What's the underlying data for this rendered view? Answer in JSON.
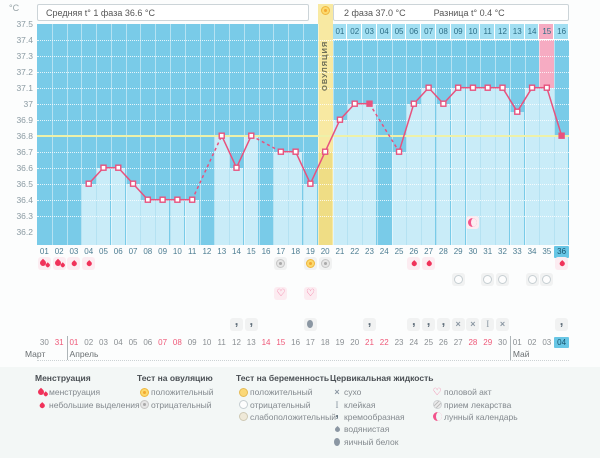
{
  "header": {
    "unit_label": "°C",
    "phase1_label": "Средняя t° 1 фаза 36.6 °C",
    "phase2_label": "2 фаза 37.0 °C",
    "diff_label": "Разница t° 0.4 °C",
    "ovulation_label": "ОВУЛЯЦИЯ"
  },
  "chart_data": {
    "type": "line",
    "ylabel": "°C",
    "ylim": [
      36.2,
      37.5
    ],
    "ytick_labels": [
      "37.5",
      "37.4",
      "37.3",
      "37.2",
      "37.1",
      "37",
      "36.9",
      "36.8",
      "36.7",
      "36.6",
      "36.5",
      "36.4",
      "36.3",
      "36.2"
    ],
    "day_labels": [
      "01",
      "02",
      "03",
      "04",
      "05",
      "06",
      "07",
      "08",
      "09",
      "10",
      "11",
      "12",
      "13",
      "14",
      "15",
      "16",
      "17",
      "18",
      "19",
      "20",
      "21",
      "22",
      "23",
      "24",
      "25",
      "26",
      "27",
      "28",
      "29",
      "30",
      "31",
      "32",
      "33",
      "34",
      "35",
      "36"
    ],
    "points": [
      [
        4,
        36.5
      ],
      [
        5,
        36.6
      ],
      [
        6,
        36.6
      ],
      [
        7,
        36.5
      ],
      [
        8,
        36.4
      ],
      [
        9,
        36.4
      ],
      [
        10,
        36.4
      ],
      [
        11,
        36.4
      ],
      [
        13,
        36.8
      ],
      [
        14,
        36.6
      ],
      [
        15,
        36.8
      ],
      [
        17,
        36.7
      ],
      [
        18,
        36.7
      ],
      [
        19,
        36.5
      ],
      [
        20,
        36.7
      ],
      [
        21,
        36.9
      ],
      [
        22,
        37
      ],
      [
        23,
        37
      ],
      [
        25,
        36.7
      ],
      [
        26,
        37
      ],
      [
        27,
        37.1
      ],
      [
        28,
        37
      ],
      [
        29,
        37.1
      ],
      [
        30,
        37.1
      ],
      [
        31,
        37.1
      ],
      [
        32,
        37.1
      ],
      [
        33,
        36.95
      ],
      [
        34,
        37.1
      ],
      [
        35,
        37.1
      ],
      [
        36,
        36.8
      ]
    ],
    "filled_marker_days": [
      23,
      36
    ],
    "coverline": 36.8,
    "ovulation_day": 20,
    "expected_period_day": 35,
    "moon_day": 30,
    "current_day_label": "36",
    "phase2_strip": {
      "labels": [
        "01",
        "02",
        "03",
        "04",
        "05",
        "06",
        "07",
        "08",
        "09",
        "10",
        "11",
        "12",
        "13",
        "14",
        "15",
        "16"
      ],
      "highlight_label": "15"
    }
  },
  "events": {
    "menstruation_heavy_days": [
      1,
      2
    ],
    "menstruation_light_days": [
      3,
      4,
      26,
      27,
      36
    ],
    "ovulation_test_positive_days": [
      19
    ],
    "ovulation_test_negative_days": [
      17,
      20
    ],
    "pregnancy_test_negative_days": [
      29,
      31,
      32,
      34,
      35
    ],
    "intercourse_days": [
      17,
      19
    ],
    "cervical_fluid": {
      "14": "creamy",
      "15": "creamy",
      "19": "eggwhite",
      "23": "creamy",
      "26": "creamy",
      "27": "creamy",
      "28": "creamy",
      "29": "dry",
      "30": "dry",
      "31": "sticky",
      "32": "dry",
      "36": "creamy"
    }
  },
  "calendar": {
    "months": [
      {
        "name": "Март",
        "dates": [
          "30",
          "31"
        ],
        "weekend_dates": [
          "31"
        ],
        "highlight_date": ""
      },
      {
        "name": "Апрель",
        "dates": [
          "01",
          "02",
          "03",
          "04",
          "05",
          "06",
          "07",
          "08",
          "09",
          "10",
          "11",
          "12",
          "13",
          "14",
          "15",
          "16",
          "17",
          "18",
          "19",
          "20",
          "21",
          "22",
          "23",
          "24",
          "25",
          "26",
          "27",
          "28",
          "29",
          "30"
        ],
        "weekend_dates": [
          "01",
          "07",
          "08",
          "14",
          "15",
          "21",
          "22",
          "28",
          "29"
        ],
        "highlight_date": ""
      },
      {
        "name": "Май",
        "dates": [
          "01",
          "02",
          "03",
          "04"
        ],
        "weekend_dates": [],
        "highlight_date": "04"
      }
    ]
  },
  "legend": {
    "groups": [
      {
        "title": "Менструация",
        "items": [
          {
            "icon": "drop-large",
            "label": "менструация"
          },
          {
            "icon": "drop-small",
            "label": "небольшие выделения"
          }
        ]
      },
      {
        "title": "Тест на овуляцию",
        "items": [
          {
            "icon": "sun-positive",
            "label": "положительный"
          },
          {
            "icon": "sun-negative",
            "label": "отрицательный"
          }
        ]
      },
      {
        "title": "Тест на беременность",
        "items": [
          {
            "icon": "preg-positive",
            "label": "положительный"
          },
          {
            "icon": "preg-negative",
            "label": "отрицательный"
          },
          {
            "icon": "preg-weak",
            "label": "слабоположительный"
          }
        ]
      },
      {
        "title": "Цервикальная жидкость",
        "items": [
          {
            "icon": "dry",
            "label": "сухо"
          },
          {
            "icon": "sticky",
            "label": "клейкая"
          },
          {
            "icon": "creamy",
            "label": "кремообразная"
          },
          {
            "icon": "watery",
            "label": "водянистая"
          },
          {
            "icon": "eggwhite",
            "label": "яичный белок"
          }
        ]
      },
      {
        "title": "",
        "items": [
          {
            "icon": "heart",
            "label": "половой акт"
          },
          {
            "icon": "pill",
            "label": "прием лекарства"
          },
          {
            "icon": "moon",
            "label": "лунный календарь"
          }
        ]
      }
    ]
  },
  "colors": {
    "plot_bg": "#79cbe8",
    "column": "#c9ecf8",
    "ovulation_band": "#f8e9a2",
    "ovulation_column": "#efdd85",
    "period_band": "#f6abc2",
    "coverline": "#eef1a9",
    "line": "#e7527e",
    "strip_cell": "#a2dff2",
    "strip_text": "#2d6e86",
    "day_label": "#4d7d92",
    "highlight_cell": "#68c6e5",
    "highlight_text": "#17536d",
    "weekend": "#ef5878",
    "date_text": "#8a8f93",
    "drop": "#f0325a",
    "heart": "#f06292",
    "moon": "#f2548c",
    "icon_gray": "#8b97a3",
    "cell_gray": "#f1f2f2",
    "cell_pink": "#fcecf1"
  }
}
